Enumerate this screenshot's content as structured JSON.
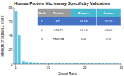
{
  "chart_data": {
    "type": "bar",
    "title": "Human Protein Microarray Specificity Validation",
    "xlabel": "Signal Rank",
    "ylabel": "Strength of Signal (Z score)",
    "x": [
      1,
      2,
      3,
      4,
      5,
      6,
      7,
      8,
      9,
      10,
      11,
      12,
      13,
      14,
      15,
      16,
      17,
      18,
      19,
      20,
      21,
      22,
      23,
      24,
      25,
      26,
      27,
      28,
      29,
      30
    ],
    "values": [
      89.99,
      49.73,
      4.51,
      3.5,
      3.1,
      2.8,
      2.6,
      2.4,
      2.2,
      2.0,
      1.9,
      1.8,
      1.7,
      1.65,
      1.6,
      1.55,
      1.5,
      1.45,
      1.4,
      1.35,
      1.3,
      1.25,
      1.2,
      1.15,
      1.1,
      1.05,
      1.0,
      0.95,
      0.9,
      0.85
    ],
    "color": "#5bc8e8",
    "xlim": [
      0.5,
      30
    ],
    "ylim": [
      0,
      96
    ],
    "xticks": [
      1,
      10,
      20,
      30
    ],
    "yticks": [
      0,
      24,
      48,
      72,
      96
    ],
    "table": {
      "columns": [
        "Rank",
        "Protein",
        "Z score",
        "S score"
      ],
      "rows": [
        [
          "1",
          "FTL",
          "89.99",
          "50.26"
        ],
        [
          "2",
          "CRLF2",
          "49.73",
          "45.22"
        ],
        [
          "3",
          "FAM98A",
          "4.51",
          "0.69"
        ]
      ],
      "header_colors": [
        "#9b9b9b",
        "#9b9b9b",
        "#4ab8d0",
        "#4ab8d0"
      ],
      "highlight_color": "#4472c4"
    }
  }
}
